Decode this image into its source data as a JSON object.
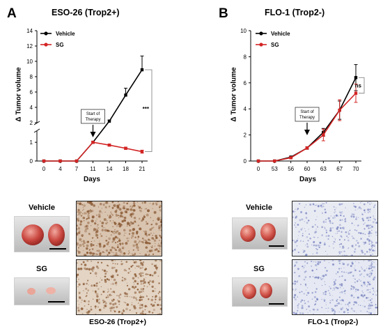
{
  "panels": [
    {
      "letter": "A",
      "title": "ESO-26 (Trop2+)",
      "ylabel": "Δ Tumor volume",
      "xlabel": "Days",
      "annotation": "Start of\nTherapy",
      "significance": "***",
      "caption": "ESO-26 (Trop2+)",
      "photo_labels": [
        "Vehicle",
        "SG"
      ],
      "stain_color": "#8a5a34"
    },
    {
      "letter": "B",
      "title": "FLO-1 (Trop2-)",
      "ylabel": "Δ Tumor volume",
      "xlabel": "Days",
      "annotation": "Start of\nTherapy",
      "significance": "ns",
      "caption": "FLO-1 (Trop2-)",
      "photo_labels": [
        "Vehicle",
        "SG"
      ],
      "stain_color": "#7d88c2"
    }
  ],
  "chart_data": [
    {
      "type": "line",
      "title": "ESO-26 (Trop2+)",
      "xlabel": "Days",
      "ylabel": "Δ Tumor volume",
      "categories": [
        "0",
        "4",
        "7",
        "11",
        "14",
        "18",
        "21"
      ],
      "y_axis_broken": true,
      "y_lower_range": [
        0,
        1.6
      ],
      "y_lower_ticks": [
        0,
        1
      ],
      "y_upper_range": [
        2,
        14
      ],
      "y_upper_ticks": [
        2,
        4,
        6,
        8,
        10,
        12,
        14
      ],
      "legend": "top-left",
      "series": [
        {
          "name": "Vehicle",
          "color": "#000000",
          "values": [
            0,
            0,
            0,
            1.0,
            2.2,
            5.6,
            8.9
          ],
          "errors": [
            0,
            0,
            0,
            0.05,
            0.15,
            0.9,
            1.8
          ]
        },
        {
          "name": "SG",
          "color": "#d32424",
          "values": [
            0,
            0,
            0,
            1.0,
            0.85,
            0.68,
            0.5
          ],
          "errors": [
            0,
            0,
            0,
            0.05,
            0.05,
            0.06,
            0.08
          ]
        }
      ]
    },
    {
      "type": "line",
      "title": "FLO-1 (Trop2-)",
      "xlabel": "Days",
      "ylabel": "Δ Tumor volume",
      "categories": [
        "0",
        "53",
        "56",
        "60",
        "63",
        "67",
        "70"
      ],
      "ylim": [
        0,
        10
      ],
      "y_ticks": [
        0,
        2,
        4,
        6,
        8,
        10
      ],
      "legend": "top-left",
      "series": [
        {
          "name": "Vehicle",
          "color": "#000000",
          "values": [
            0,
            0,
            0.3,
            1.0,
            2.2,
            3.9,
            6.4
          ],
          "errors": [
            0,
            0,
            0.05,
            0.1,
            0.3,
            0.7,
            1.0
          ]
        },
        {
          "name": "SG",
          "color": "#d32424",
          "values": [
            0,
            0,
            0.25,
            1.0,
            2.0,
            3.9,
            5.2
          ],
          "errors": [
            0,
            0,
            0.05,
            0.1,
            0.45,
            0.8,
            0.7
          ]
        }
      ]
    }
  ]
}
